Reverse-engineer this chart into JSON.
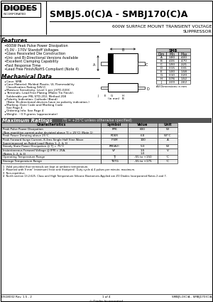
{
  "title_model": "SMBJ5.0(C)A - SMBJ170(C)A",
  "title_desc_1": "600W SURFACE MOUNT TRANSIENT VOLTAGE",
  "title_desc_2": "SUPPRESSOR",
  "features_title": "Features",
  "features": [
    "600W Peak Pulse Power Dissipation",
    "5.0V - 170V Standoff Voltages",
    "Glass Passivated Die Construction",
    "Uni- and Bi-Directional Versions Available",
    "Excellent Clamping Capability",
    "Fast Response Time",
    "Lead Free Finish/RoHS Compliant (Note 4)"
  ],
  "mech_title": "Mechanical Data",
  "mech_items": [
    [
      "Case: SMB",
      false
    ],
    [
      "Case Material: Molded Plastic, UL Flammability",
      false
    ],
    [
      "  Classification Rating 94V-0",
      false
    ],
    [
      "Moisture Sensitivity: Level 1 per J-STD-020C",
      false
    ],
    [
      "Terminals: Lead Free Plating (Matte Tin Finish).",
      false
    ],
    [
      "  Solderable per MIL-STD-202, Method 208",
      false
    ],
    [
      "Polarity Indication: Cathode (Band)",
      false
    ],
    [
      "  (Note: Bi-directional devices have no polarity indication.)",
      false
    ],
    [
      "Marking: Date Code and Marking Code",
      false
    ],
    [
      "  See Page 4",
      false
    ],
    [
      "Ordering Info: See Page 4",
      false
    ],
    [
      "Weight: ~0.9 grams (approximate)",
      false
    ]
  ],
  "dim_table_header": "SMB",
  "dim_col_headers": [
    "Dim",
    "Min",
    "Max"
  ],
  "dim_rows": [
    [
      "A",
      "3.80",
      "4.00"
    ],
    [
      "B",
      "4.06",
      "4.70"
    ],
    [
      "C",
      "1.93",
      "2.21"
    ],
    [
      "D",
      "0.15",
      "0.31"
    ],
    [
      "E",
      "1.00",
      "1.58"
    ],
    [
      "G",
      "0.10",
      "0.20"
    ],
    [
      "H",
      "0.76",
      "1.52"
    ],
    [
      "J",
      "2.00",
      "2.62"
    ]
  ],
  "dim_note": "All Dimensions in mm",
  "ratings_title": "Maximum Ratings",
  "ratings_note": "  (TJ = +25°C unless otherwise specified)",
  "ratings_headers": [
    "Characteristics",
    "Symbol",
    "Value",
    "Unit"
  ],
  "ratings_rows": [
    [
      "Peak Pulse Power Dissipation\n(Non-repetitive current pulse deviated above TJ = 25°C) (Note 1)",
      "PPK",
      "600",
      "W"
    ],
    [
      "Peak Power Derating above 25°C",
      "PDER",
      "6.8",
      "W/°C"
    ],
    [
      "Peak Forward Surge Current, 8.3ms Single Half Sine Wave\nSuperimposed on Rated Load (Notes 1, 2, & 3)",
      "IFSM",
      "100",
      "A"
    ],
    [
      "Steady State Power Dissipation @ TJ = 75°C",
      "PM(AV)",
      "5.0",
      "W"
    ],
    [
      "Instantaneous Forward Voltage @ IFM = 25A,\n(Notes 1, 2, & 3)",
      "VF",
      "1.5\n1.0",
      "V"
    ],
    [
      "Operating Temperature Range",
      "TJ",
      "-55 to +150",
      "°C"
    ],
    [
      "Storage Temperature Range",
      "TSTG",
      "-55 to +175",
      "°C"
    ]
  ],
  "notes": [
    "1  Valid provided that terminals are kept at ambient temperature.",
    "2  Mounted with 9 mm² (minimum) heat sink (footprint). Duty cycle ≤ 4 pulses per minute, maximum.",
    "3  Non-repetitive.",
    "4  North section 13.2.625. Class and High Temperature Silicone Elastomers Applied are ZO Diodes Incorporated Notes 2 and 7."
  ],
  "footer_left": "DS18032 Rev. 1.5 - 2",
  "footer_center": "1 of 4",
  "footer_right": "SMBJ5.0(C)A - SMBJ170(C)A",
  "footer_copy": "© Diodes Incorporated",
  "bg_color": "#ffffff"
}
